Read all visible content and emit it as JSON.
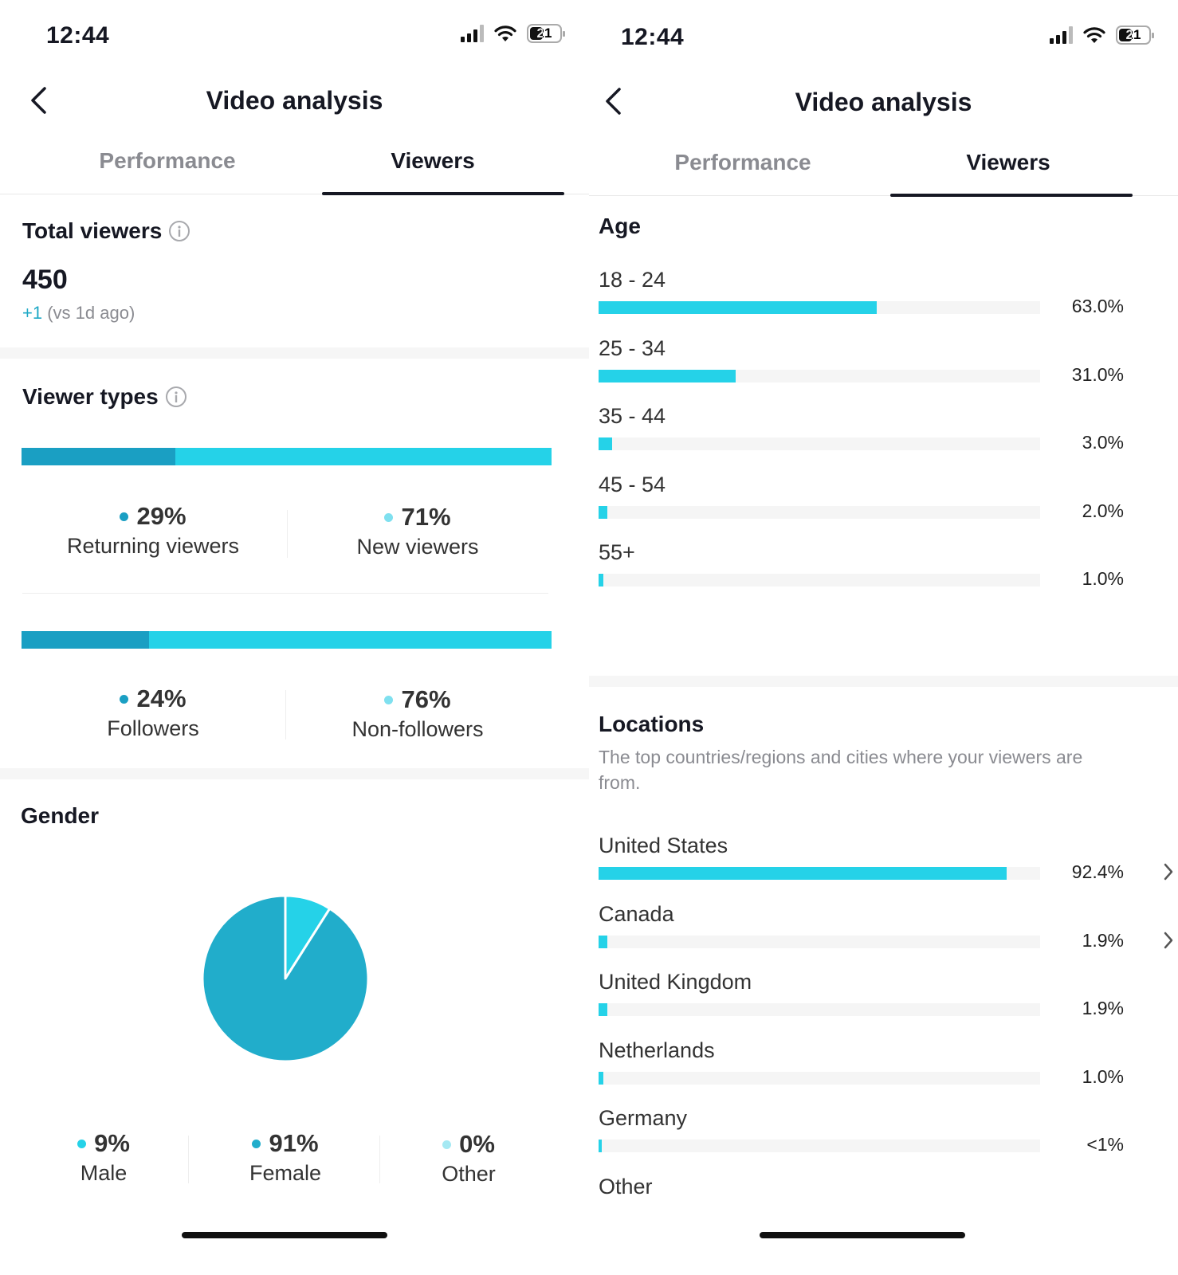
{
  "status": {
    "time": "12:44",
    "battery": "21"
  },
  "header": {
    "title": "Video analysis",
    "back_icon": "chevron-left-icon"
  },
  "tabs": [
    {
      "label": "Performance"
    },
    {
      "label": "Viewers"
    }
  ],
  "left": {
    "total_viewers": {
      "title": "Total viewers",
      "value": "450",
      "delta": "+1",
      "delta_suffix": "(vs 1d ago)"
    },
    "viewer_types": {
      "title": "Viewer types",
      "groups": [
        {
          "split": 0.29,
          "items": [
            {
              "pct": "29%",
              "label": "Returning viewers",
              "color": "#1a9fc3"
            },
            {
              "pct": "71%",
              "label": "New viewers",
              "color": "#25d2e8"
            }
          ]
        },
        {
          "split": 0.24,
          "items": [
            {
              "pct": "24%",
              "label": "Followers",
              "color": "#1a9fc3"
            },
            {
              "pct": "76%",
              "label": "Non-followers",
              "color": "#25d2e8"
            }
          ]
        }
      ]
    },
    "gender": {
      "title": "Gender",
      "items": [
        {
          "pct": "9%",
          "label": "Male",
          "value": 9,
          "color": "#25d2e8"
        },
        {
          "pct": "91%",
          "label": "Female",
          "value": 91,
          "color": "#21adcb"
        },
        {
          "pct": "0%",
          "label": "Other",
          "value": 0,
          "color": "#a5e9f3"
        }
      ]
    }
  },
  "right": {
    "age": {
      "title": "Age",
      "rows": [
        {
          "label": "18 - 24",
          "pct": "63.0%",
          "value": 63.0
        },
        {
          "label": "25 - 34",
          "pct": "31.0%",
          "value": 31.0
        },
        {
          "label": "35 - 44",
          "pct": "3.0%",
          "value": 3.0
        },
        {
          "label": "45 - 54",
          "pct": "2.0%",
          "value": 2.0
        },
        {
          "label": "55+",
          "pct": "1.0%",
          "value": 1.0
        }
      ]
    },
    "locations": {
      "title": "Locations",
      "description": "The top countries/regions and cities where your viewers are from.",
      "rows": [
        {
          "label": "United States",
          "pct": "92.4%",
          "value": 92.4,
          "chevron": true
        },
        {
          "label": "Canada",
          "pct": "1.9%",
          "value": 1.9,
          "chevron": true
        },
        {
          "label": "United Kingdom",
          "pct": "1.9%",
          "value": 1.9,
          "chevron": false
        },
        {
          "label": "Netherlands",
          "pct": "1.0%",
          "value": 1.0,
          "chevron": false
        },
        {
          "label": "Germany",
          "pct": "<1%",
          "value": 0.5,
          "chevron": false
        }
      ],
      "trailing_label": "Other"
    }
  }
}
